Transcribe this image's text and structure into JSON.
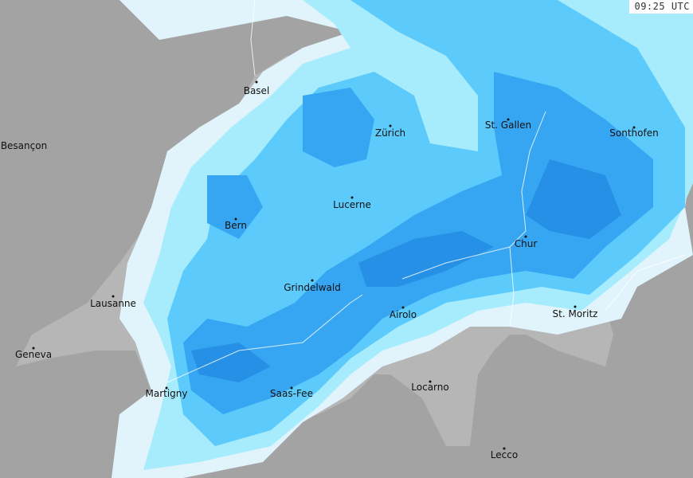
{
  "timestamp": "09:25 UTC",
  "colors": {
    "background": "#a3a3a3",
    "country": "#b6b6b6",
    "precip_very_light": "#e2f4fb",
    "precip_light": "#a6ecfc",
    "precip_moderate": "#5ccbfc",
    "precip_heavy": "#36a6f2",
    "precip_very_heavy": "#2590e6"
  },
  "cities": [
    {
      "name": "Basel"
    },
    {
      "name": "Besançon"
    },
    {
      "name": "Zürich"
    },
    {
      "name": "St. Gallen"
    },
    {
      "name": "Sonthofen"
    },
    {
      "name": "Lucerne"
    },
    {
      "name": "Bern"
    },
    {
      "name": "Chur"
    },
    {
      "name": "Grindelwald"
    },
    {
      "name": "Lausanne"
    },
    {
      "name": "Airolo"
    },
    {
      "name": "St. Moritz"
    },
    {
      "name": "Geneva"
    },
    {
      "name": "Martigny"
    },
    {
      "name": "Saas-Fee"
    },
    {
      "name": "Locarno"
    },
    {
      "name": "Lecco"
    }
  ]
}
